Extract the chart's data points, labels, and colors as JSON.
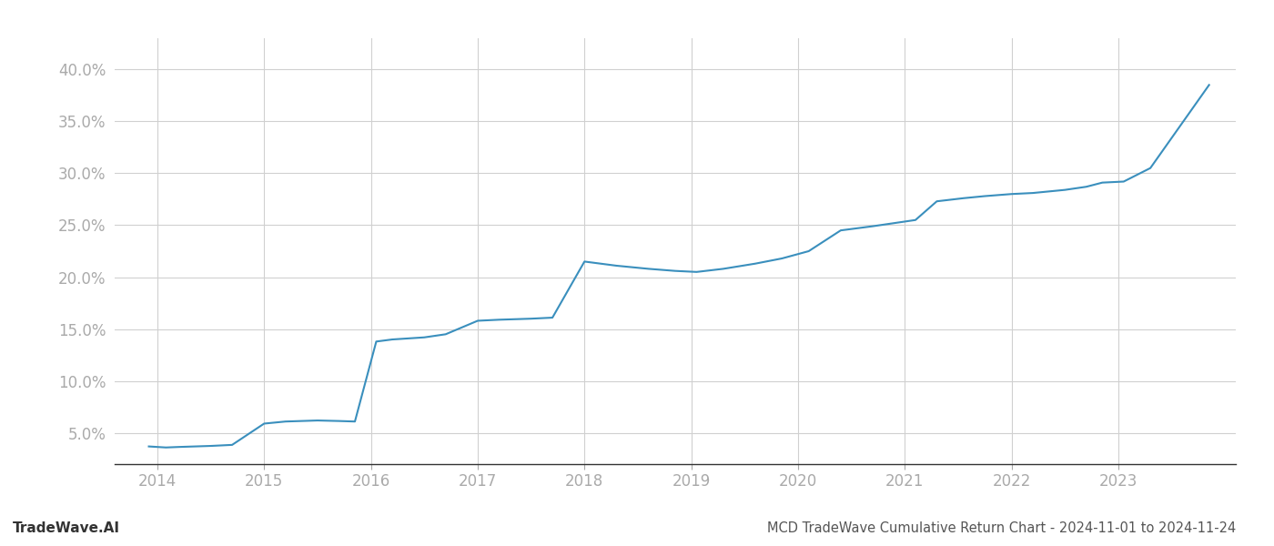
{
  "title": "MCD TradeWave Cumulative Return Chart - 2024-11-01 to 2024-11-24",
  "watermark": "TradeWave.AI",
  "line_color": "#3a8fbd",
  "background_color": "#ffffff",
  "x_values": [
    2013.92,
    2014.08,
    2014.2,
    2014.5,
    2014.7,
    2015.0,
    2015.2,
    2015.5,
    2015.7,
    2015.85,
    2016.05,
    2016.2,
    2016.5,
    2016.7,
    2017.0,
    2017.2,
    2017.5,
    2017.7,
    2018.0,
    2018.15,
    2018.3,
    2018.6,
    2018.85,
    2019.05,
    2019.3,
    2019.6,
    2019.85,
    2020.1,
    2020.4,
    2020.7,
    2020.9,
    2021.1,
    2021.3,
    2021.55,
    2021.75,
    2022.0,
    2022.2,
    2022.5,
    2022.7,
    2022.85,
    2023.05,
    2023.3,
    2023.85
  ],
  "y_values": [
    3.7,
    3.6,
    3.65,
    3.75,
    3.85,
    5.9,
    6.1,
    6.2,
    6.15,
    6.1,
    13.8,
    14.0,
    14.2,
    14.5,
    15.8,
    15.9,
    16.0,
    16.1,
    21.5,
    21.3,
    21.1,
    20.8,
    20.6,
    20.5,
    20.8,
    21.3,
    21.8,
    22.5,
    24.5,
    24.9,
    25.2,
    25.5,
    27.3,
    27.6,
    27.8,
    28.0,
    28.1,
    28.4,
    28.7,
    29.1,
    29.2,
    30.5,
    38.5
  ],
  "ylim": [
    2.0,
    43.0
  ],
  "xlim": [
    2013.6,
    2024.1
  ],
  "yticks": [
    5.0,
    10.0,
    15.0,
    20.0,
    25.0,
    30.0,
    35.0,
    40.0
  ],
  "xticks": [
    2014,
    2015,
    2016,
    2017,
    2018,
    2019,
    2020,
    2021,
    2022,
    2023
  ],
  "grid_color": "#d0d0d0",
  "line_width": 1.5,
  "title_fontsize": 10.5,
  "watermark_fontsize": 11,
  "tick_fontsize": 12,
  "tick_color": "#aaaaaa",
  "spine_color": "#333333"
}
